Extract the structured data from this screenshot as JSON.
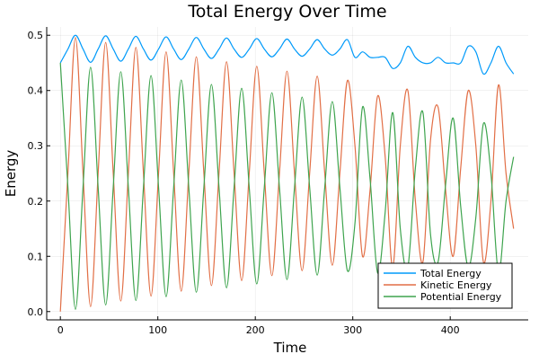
{
  "chart_data": {
    "type": "line",
    "title": "Total Energy Over Time",
    "xlabel": "Time",
    "ylabel": "Energy",
    "xlim": [
      -14,
      480
    ],
    "ylim": [
      -0.015,
      0.515
    ],
    "xticks": [
      0,
      100,
      200,
      300,
      400
    ],
    "xtick_labels": [
      "0",
      "100",
      "200",
      "300",
      "400"
    ],
    "yticks": [
      0.0,
      0.1,
      0.2,
      0.3,
      0.4,
      0.5
    ],
    "ytick_labels": [
      "0.0",
      "0.1",
      "0.2",
      "0.3",
      "0.4",
      "0.5"
    ],
    "grid": true,
    "legend_position": "bottom-right",
    "x": [
      0,
      7.75,
      15.5,
      23.25,
      31,
      38.75,
      46.5,
      54.25,
      62,
      69.75,
      77.5,
      85.25,
      93,
      100.75,
      108.5,
      116.25,
      124,
      131.75,
      139.5,
      147.25,
      155,
      162.75,
      170.5,
      178.25,
      186,
      193.75,
      201.5,
      209.25,
      217,
      224.75,
      232.5,
      240.25,
      248,
      255.75,
      263.5,
      271.25,
      279,
      286.75,
      294.5,
      302.25,
      310,
      317.75,
      325.5,
      333.25,
      341,
      348.75,
      356.5,
      364.25,
      372,
      379.75,
      387.5,
      395.25,
      403,
      410.75,
      418.5,
      426.25,
      434,
      441.75,
      449.5,
      457.25,
      465
    ],
    "series": [
      {
        "name": "Total Energy",
        "color": "#009AFA",
        "values": [
          0.45,
          0.475,
          0.5,
          0.475,
          0.451,
          0.475,
          0.499,
          0.475,
          0.453,
          0.475,
          0.498,
          0.475,
          0.455,
          0.475,
          0.497,
          0.475,
          0.456,
          0.475,
          0.496,
          0.475,
          0.458,
          0.475,
          0.495,
          0.475,
          0.46,
          0.475,
          0.494,
          0.475,
          0.461,
          0.475,
          0.493,
          0.475,
          0.462,
          0.475,
          0.492,
          0.475,
          0.464,
          0.475,
          0.492,
          0.46,
          0.47,
          0.46,
          0.46,
          0.46,
          0.44,
          0.45,
          0.48,
          0.46,
          0.45,
          0.45,
          0.46,
          0.45,
          0.45,
          0.45,
          0.48,
          0.47,
          0.43,
          0.45,
          0.48,
          0.45,
          0.43
        ]
      },
      {
        "name": "Kinetic Energy",
        "color": "#E26F46",
        "values": [
          0,
          0.25,
          0.496,
          0.25,
          0.009,
          0.25,
          0.487,
          0.25,
          0.019,
          0.25,
          0.478,
          0.25,
          0.028,
          0.25,
          0.47,
          0.25,
          0.037,
          0.25,
          0.461,
          0.25,
          0.047,
          0.25,
          0.452,
          0.25,
          0.056,
          0.25,
          0.444,
          0.25,
          0.065,
          0.25,
          0.435,
          0.25,
          0.074,
          0.25,
          0.426,
          0.25,
          0.084,
          0.25,
          0.418,
          0.3,
          0.1,
          0.22,
          0.39,
          0.28,
          0.08,
          0.3,
          0.4,
          0.2,
          0.09,
          0.31,
          0.37,
          0.22,
          0.1,
          0.26,
          0.4,
          0.3,
          0.09,
          0.2,
          0.41,
          0.25,
          0.15
        ]
      },
      {
        "name": "Potential Energy",
        "color": "#3EA44E",
        "values": [
          0.45,
          0.225,
          0.004,
          0.225,
          0.442,
          0.225,
          0.012,
          0.225,
          0.434,
          0.225,
          0.02,
          0.225,
          0.427,
          0.225,
          0.027,
          0.225,
          0.419,
          0.225,
          0.035,
          0.225,
          0.411,
          0.225,
          0.043,
          0.225,
          0.404,
          0.225,
          0.05,
          0.225,
          0.396,
          0.225,
          0.058,
          0.225,
          0.388,
          0.225,
          0.066,
          0.225,
          0.38,
          0.225,
          0.074,
          0.16,
          0.37,
          0.24,
          0.07,
          0.18,
          0.36,
          0.15,
          0.08,
          0.26,
          0.36,
          0.14,
          0.09,
          0.23,
          0.35,
          0.19,
          0.08,
          0.17,
          0.34,
          0.25,
          0.07,
          0.2,
          0.28
        ]
      }
    ]
  }
}
